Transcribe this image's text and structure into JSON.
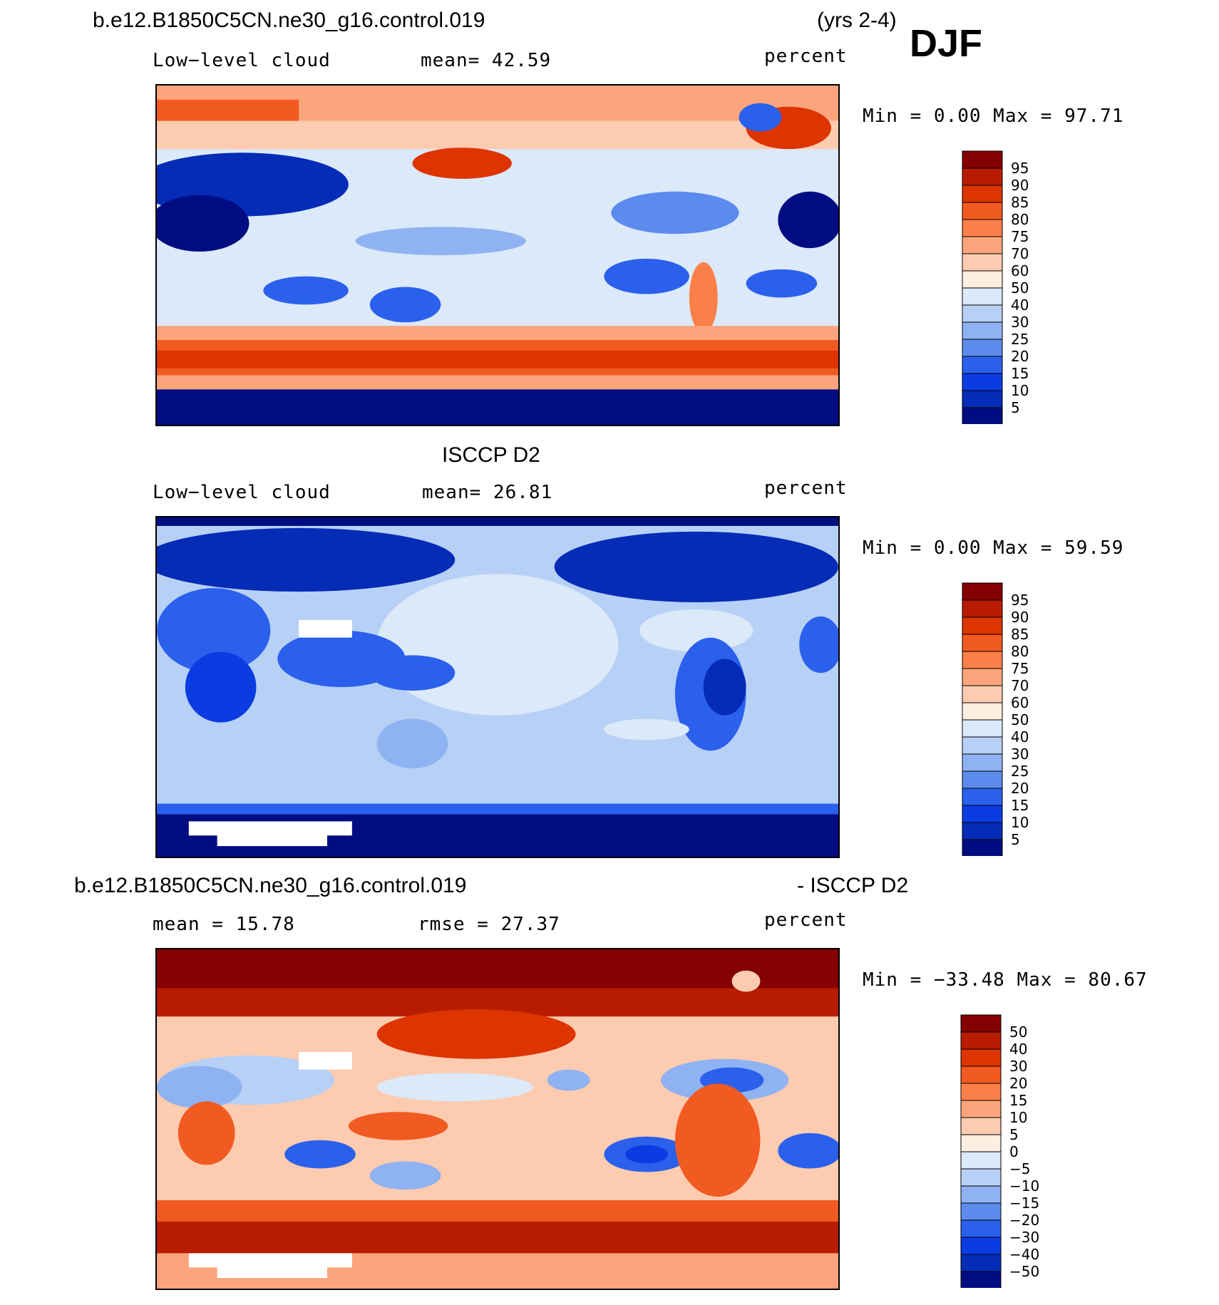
{
  "header": {
    "case_name": "b.e12.B1850C5CN.ne30_g16.control.019",
    "years": "(yrs 2-4)",
    "season": "DJF"
  },
  "panels": [
    {
      "id": "model",
      "title": "",
      "variable": "Low−level cloud",
      "stat": "mean=   42.59",
      "units": "percent",
      "minmax": "Min =     0.00 Max =   97.71",
      "legend": {
        "labels": [
          "95",
          "90",
          "85",
          "80",
          "75",
          "70",
          "60",
          "50",
          "40",
          "30",
          "25",
          "20",
          "15",
          "10",
          "5"
        ],
        "colors": [
          "#850000",
          "#b81c00",
          "#dd3400",
          "#f15a20",
          "#fb7f48",
          "#fca57c",
          "#fdcbb0",
          "#fdeee0",
          "#dbe9f8",
          "#b7d0f5",
          "#8fb2f2",
          "#5c8bee",
          "#2b60ec",
          "#0b3ce2",
          "#042cb6",
          "#020c82"
        ]
      }
    },
    {
      "id": "obs",
      "title": "ISCCP D2",
      "variable": "Low−level cloud",
      "stat": "mean=   26.81",
      "units": "percent",
      "minmax": "Min =     0.00 Max =   59.59",
      "legend": {
        "labels": [
          "95",
          "90",
          "85",
          "80",
          "75",
          "70",
          "60",
          "50",
          "40",
          "30",
          "25",
          "20",
          "15",
          "10",
          "5"
        ],
        "colors": [
          "#850000",
          "#b81c00",
          "#dd3400",
          "#f15a20",
          "#fb7f48",
          "#fca57c",
          "#fdcbb0",
          "#fdeee0",
          "#dbe9f8",
          "#b7d0f5",
          "#8fb2f2",
          "#5c8bee",
          "#2b60ec",
          "#0b3ce2",
          "#042cb6",
          "#020c82"
        ]
      }
    },
    {
      "id": "diff",
      "title_left": "b.e12.B1850C5CN.ne30_g16.control.019",
      "title_right": "- ISCCP D2",
      "stat_left": "mean =   15.78",
      "stat_right": "rmse =   27.37",
      "units": "percent",
      "minmax": "Min = −33.48 Max =   80.67",
      "legend": {
        "labels": [
          "50",
          "40",
          "30",
          "20",
          "15",
          "10",
          "5",
          "0",
          "−5",
          "−10",
          "−15",
          "−20",
          "−30",
          "−40",
          "−50"
        ],
        "colors": [
          "#850000",
          "#b81c00",
          "#dd3400",
          "#f15a20",
          "#fb7f48",
          "#fca57c",
          "#fdcbb0",
          "#fdeee0",
          "#dbe9f8",
          "#b7d0f5",
          "#8fb2f2",
          "#5c8bee",
          "#2b60ec",
          "#0b3ce2",
          "#042cb6",
          "#020c82"
        ]
      }
    }
  ]
}
